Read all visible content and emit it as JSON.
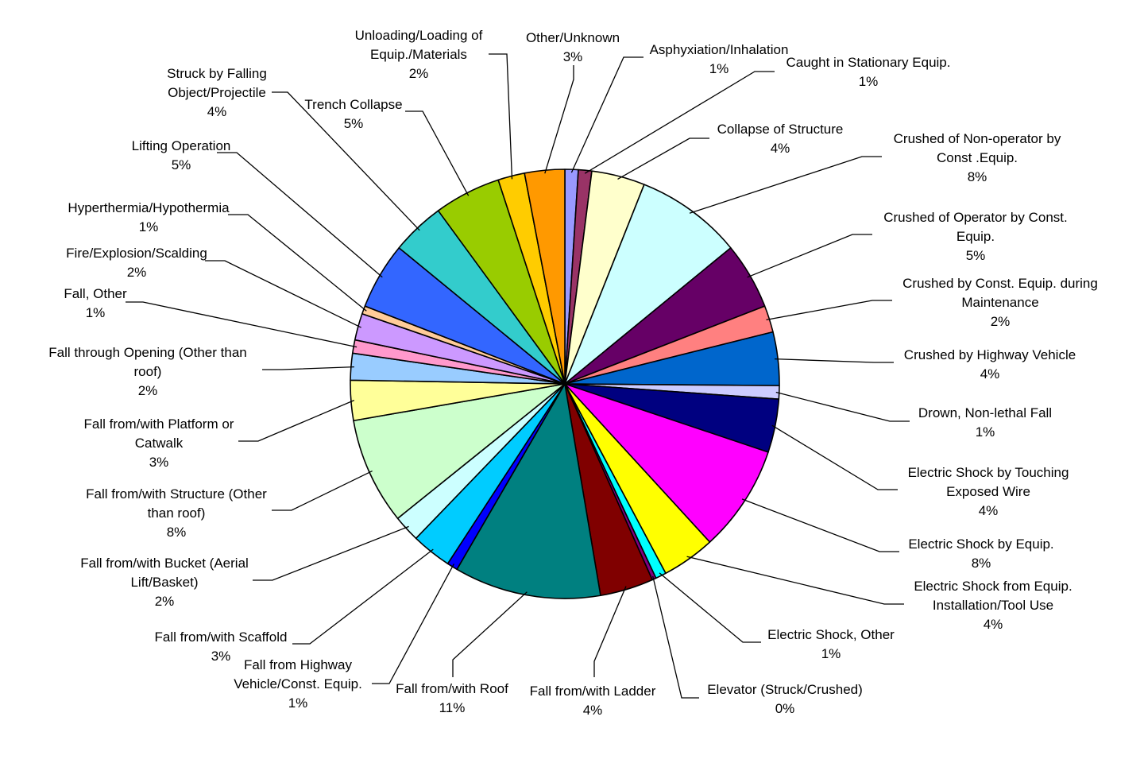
{
  "chart_data": {
    "type": "pie",
    "title": "",
    "legend": "none",
    "unit": "%",
    "slices": [
      {
        "label": "Asphyxiation/Inhalation",
        "value": 1,
        "pct_label": "1%",
        "color": "#9999ff"
      },
      {
        "label": "Caught in Stationary Equip.",
        "value": 1,
        "pct_label": "1%",
        "color": "#993366"
      },
      {
        "label": "Collapse of Structure",
        "value": 4,
        "pct_label": "4%",
        "color": "#ffffcc"
      },
      {
        "label": "Crushed of Non-operator by Const .Equip.",
        "value": 8,
        "pct_label": "8%",
        "color": "#ccffff"
      },
      {
        "label": "Crushed of Operator by Const. Equip.",
        "value": 5,
        "pct_label": "5%",
        "color": "#660066"
      },
      {
        "label": "Crushed by Const. Equip. during Maintenance",
        "value": 2,
        "pct_label": "2%",
        "color": "#ff8080"
      },
      {
        "label": "Crushed by Highway Vehicle",
        "value": 4,
        "pct_label": "4%",
        "color": "#0066cc"
      },
      {
        "label": "Drown, Non-lethal Fall",
        "value": 1,
        "pct_label": "1%",
        "color": "#ccccff"
      },
      {
        "label": "Electric Shock by Touching Exposed Wire",
        "value": 4,
        "pct_label": "4%",
        "color": "#000080"
      },
      {
        "label": "Electric Shock by Equip.",
        "value": 8,
        "pct_label": "8%",
        "color": "#ff00ff"
      },
      {
        "label": "Electric Shock from Equip. Installation/Tool Use",
        "value": 4,
        "pct_label": "4%",
        "color": "#ffff00"
      },
      {
        "label": "Electric Shock, Other",
        "value": 0.8,
        "pct_label": "1%",
        "color": "#00ffff"
      },
      {
        "label": "Elevator (Struck/Crushed)",
        "value": 0.3,
        "pct_label": "0%",
        "color": "#800080"
      },
      {
        "label": "Fall from/with Ladder",
        "value": 4,
        "pct_label": "4%",
        "color": "#800000"
      },
      {
        "label": "Fall from/with Roof",
        "value": 11,
        "pct_label": "11%",
        "color": "#008080"
      },
      {
        "label": "Fall from Highway Vehicle/Const. Equip.",
        "value": 0.8,
        "pct_label": "1%",
        "color": "#0000ff"
      },
      {
        "label": "Fall from/with Scaffold",
        "value": 3,
        "pct_label": "3%",
        "color": "#00ccff"
      },
      {
        "label": "Fall from/with Bucket (Aerial Lift/Basket)",
        "value": 2,
        "pct_label": "2%",
        "color": "#ccffff"
      },
      {
        "label": "Fall from/with Structure (Other than roof)",
        "value": 8,
        "pct_label": "8%",
        "color": "#ccffcc"
      },
      {
        "label": "Fall from/with Platform or Catwalk",
        "value": 3,
        "pct_label": "3%",
        "color": "#ffff99"
      },
      {
        "label": "Fall through Opening (Other than roof)",
        "value": 2,
        "pct_label": "2%",
        "color": "#99ccff"
      },
      {
        "label": "Fall, Other",
        "value": 1,
        "pct_label": "1%",
        "color": "#ff99cc"
      },
      {
        "label": "Fire/Explosion/Scalding",
        "value": 2,
        "pct_label": "2%",
        "color": "#cc99ff"
      },
      {
        "label": "Hyperthermia/Hypothermia",
        "value": 0.6,
        "pct_label": "1%",
        "color": "#ffcc99"
      },
      {
        "label": "Lifting Operation",
        "value": 5,
        "pct_label": "5%",
        "color": "#3366ff"
      },
      {
        "label": "Struck by Falling Object/Projectile",
        "value": 4,
        "pct_label": "4%",
        "color": "#33cccc"
      },
      {
        "label": "Trench Collapse",
        "value": 5,
        "pct_label": "5%",
        "color": "#99cc00"
      },
      {
        "label": "Unloading/Loading of Equip./Materials",
        "value": 2,
        "pct_label": "2%",
        "color": "#ffcc00"
      },
      {
        "label": "Other/Unknown",
        "value": 3,
        "pct_label": "3%",
        "color": "#ff9900"
      }
    ]
  }
}
